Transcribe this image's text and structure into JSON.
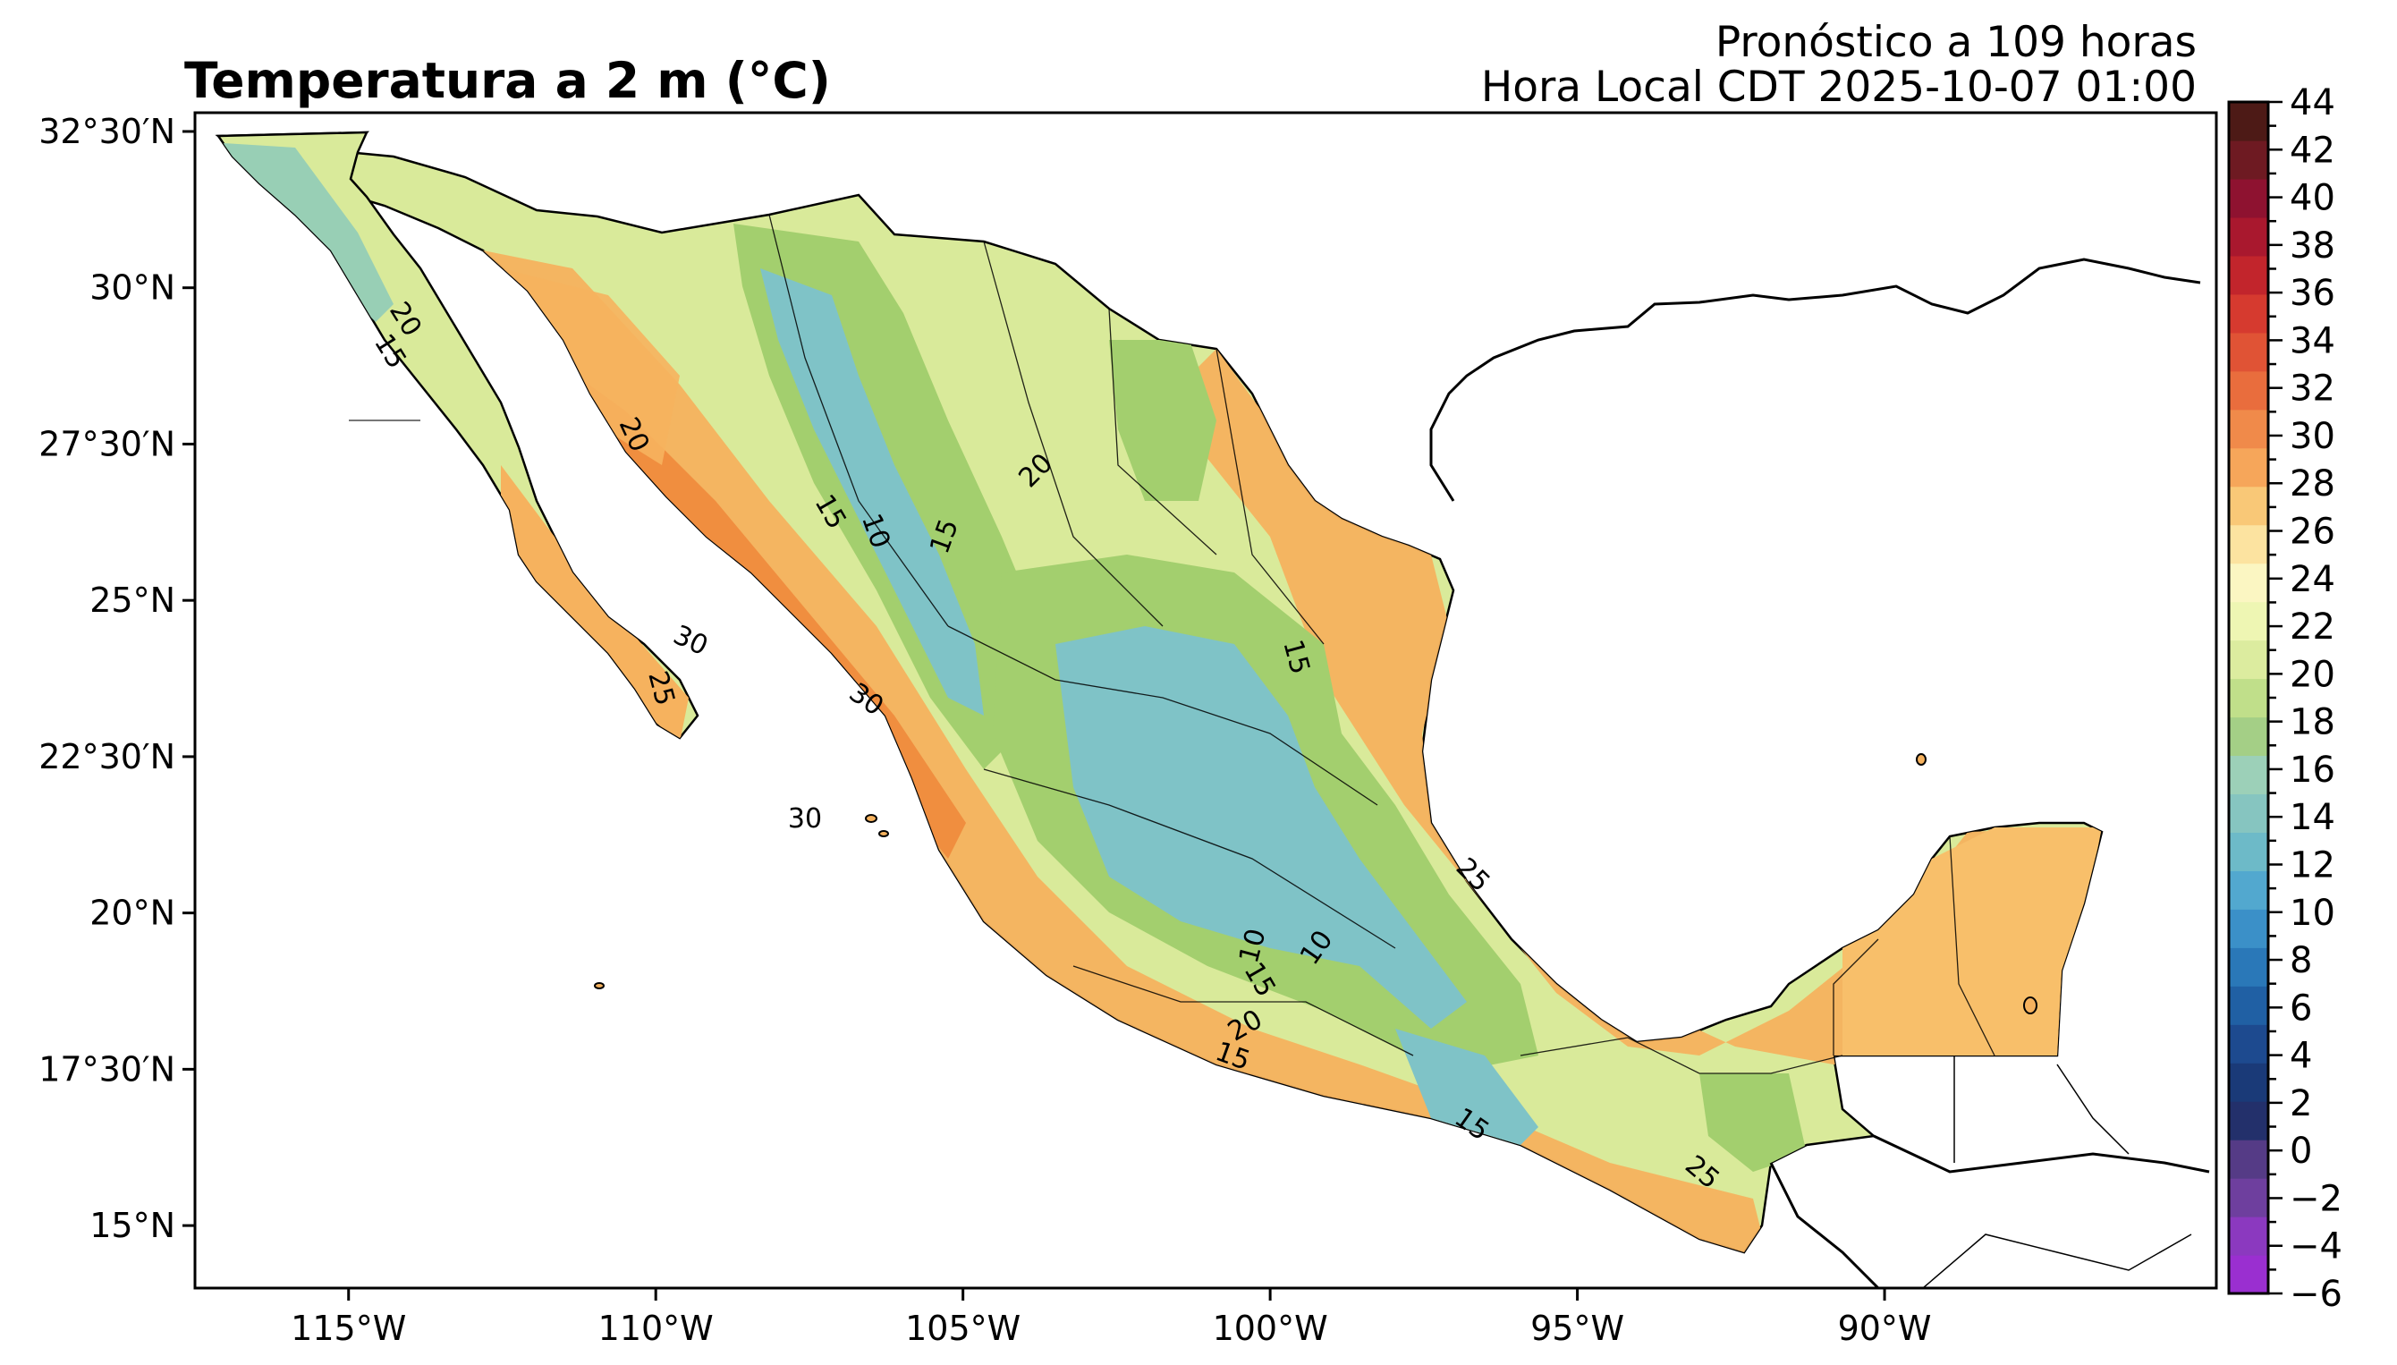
{
  "header": {
    "title": "Temperatura a 2 m (°C)",
    "forecast_label": "Pronóstico a 109 horas",
    "valid_time_label": "Hora Local CDT 2025-10-07 01:00"
  },
  "map": {
    "projection": "lat-lon",
    "lon_range": [
      -117.5,
      -84.6
    ],
    "lat_range": [
      14.0,
      32.8
    ],
    "lon_ticks": [
      "115°W",
      "110°W",
      "105°W",
      "100°W",
      "95°W",
      "90°W"
    ],
    "lat_ticks": [
      "15°N",
      "17°30′N",
      "20°N",
      "22°30′N",
      "25°N",
      "27°30′N",
      "30°N",
      "32°30′N"
    ],
    "contour_labels": [
      "20",
      "15",
      "20",
      "10",
      "15",
      "15",
      "20",
      "30",
      "25",
      "30",
      "30",
      "15",
      "25",
      "10",
      "10",
      "15",
      "15",
      "20",
      "15",
      "25"
    ],
    "land_colors": {
      "hot": "#f08a3c",
      "warm": "#f6b25e",
      "mild": "#fbe3a0",
      "cool": "#d9ea9a",
      "green": "#a3cf6e",
      "cold": "#98cfb5",
      "colder": "#7fc3c7"
    }
  },
  "colorbar": {
    "ticks": [
      "44",
      "42",
      "40",
      "38",
      "36",
      "34",
      "32",
      "30",
      "28",
      "26",
      "24",
      "22",
      "20",
      "18",
      "16",
      "14",
      "12",
      "10",
      "8",
      "6",
      "4",
      "2",
      "0",
      "−2",
      "−4",
      "−6"
    ],
    "min": -6,
    "max": 44,
    "step": 1,
    "colors": [
      "#9a2fd0",
      "#8b39bf",
      "#6e3f9e",
      "#553b86",
      "#23306b",
      "#1a3a78",
      "#1d4a8f",
      "#2060a4",
      "#2a78b8",
      "#3b90c8",
      "#52a8cf",
      "#6dbac8",
      "#86c5c0",
      "#9cd0b8",
      "#a4cf86",
      "#c0df8a",
      "#dcec9f",
      "#eef6b3",
      "#fbf6c2",
      "#fce3a0",
      "#f9c877",
      "#f6a65a",
      "#f08a4a",
      "#e96d3d",
      "#e05335",
      "#d63a2f",
      "#c2252c",
      "#a9182e",
      "#8e1230",
      "#6e1a22",
      "#4d1a16"
    ]
  }
}
